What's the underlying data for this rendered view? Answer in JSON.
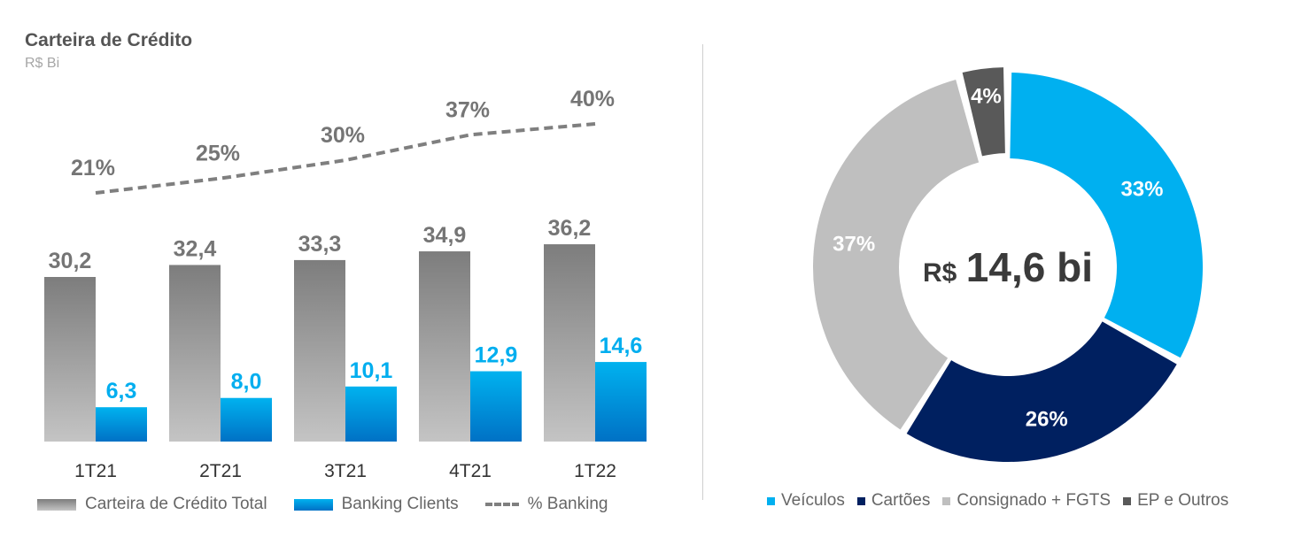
{
  "left_chart": {
    "title": "Carteira de Crédito",
    "subtitle": "R$ Bi",
    "legend": {
      "total": "Carteira de Crédito Total",
      "banking": "Banking Clients",
      "pct": "% Banking"
    }
  },
  "right_chart": {
    "center_label_prefix": "R$",
    "center_label_value": "14,6 bi",
    "legend": [
      "Veículos",
      "Cartões",
      "Consignado + FGTS",
      "EP e Outros"
    ]
  },
  "colors": {
    "gray_top": "#7d7d7d",
    "gray_bottom": "#c4c4c4",
    "blue_top": "#00b2ef",
    "blue_bottom": "#0071c5",
    "label_gray": "#757575",
    "label_blue": "#00aeef",
    "veiculos": "#00b0f0",
    "cartoes": "#002060",
    "consignado": "#bfbfbf",
    "ep_outros": "#595959"
  },
  "chart_data": [
    {
      "type": "bar",
      "categories": [
        "1T21",
        "2T21",
        "3T21",
        "4T21",
        "1T22"
      ],
      "series": [
        {
          "name": "Carteira de Crédito Total",
          "values": [
            30.2,
            32.4,
            33.3,
            34.9,
            36.2
          ],
          "labels": [
            "30,2",
            "32,4",
            "33,3",
            "34,9",
            "36,2"
          ]
        },
        {
          "name": "Banking Clients",
          "values": [
            6.3,
            8.0,
            10.1,
            12.9,
            14.6
          ],
          "labels": [
            "6,3",
            "8,0",
            "10,1",
            "12,9",
            "14,6"
          ]
        },
        {
          "name": "% Banking",
          "type": "line",
          "values": [
            21,
            25,
            30,
            37,
            40
          ],
          "labels": [
            "21%",
            "25%",
            "30%",
            "37%",
            "40%"
          ]
        }
      ],
      "title": "Carteira de Crédito",
      "subtitle": "R$ Bi",
      "ylim": [
        0,
        40
      ],
      "grid": false,
      "legend_position": "bottom"
    },
    {
      "type": "pie",
      "donut": true,
      "categories": [
        "Veículos",
        "Cartões",
        "Consignado + FGTS",
        "EP e Outros"
      ],
      "values": [
        33,
        26,
        37,
        4
      ],
      "labels": [
        "33%",
        "26%",
        "37%",
        "4%"
      ],
      "center_label": "R$ 14,6 bi",
      "legend_position": "bottom"
    }
  ]
}
